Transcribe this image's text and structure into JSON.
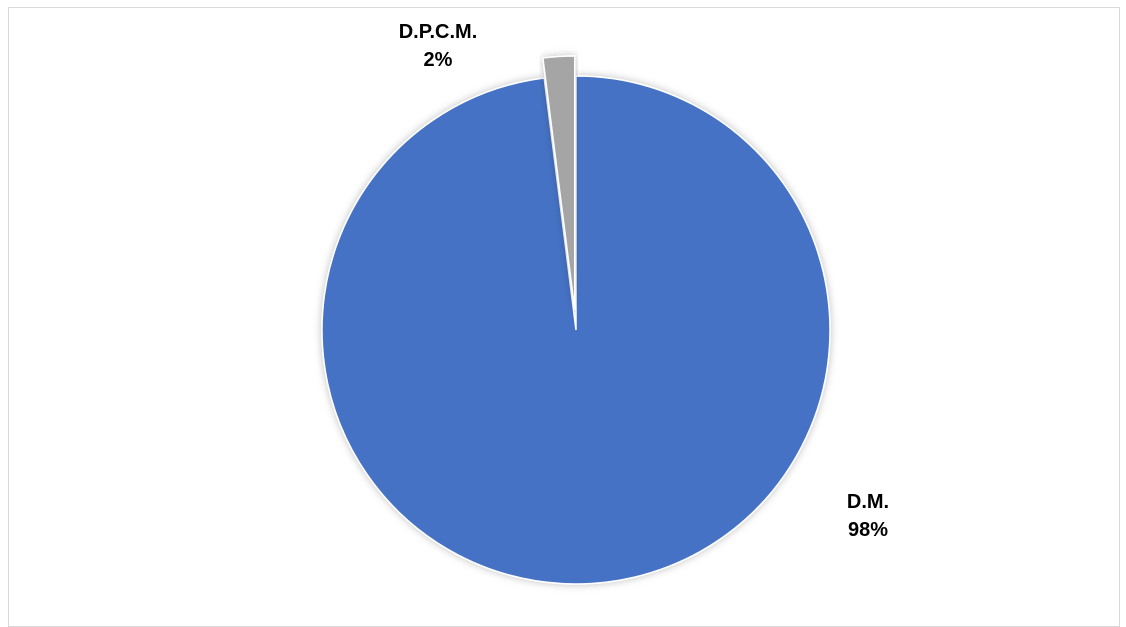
{
  "chart_data": {
    "type": "pie",
    "categories": [
      "D.M.",
      "D.P.C.M."
    ],
    "values": [
      98,
      2
    ],
    "value_unit": "%",
    "colors": [
      "#4472c4",
      "#a5a5a5"
    ],
    "exploded": [
      "D.P.C.M."
    ],
    "data_labels": [
      {
        "category": "D.M.",
        "text": "98%"
      },
      {
        "category": "D.P.C.M.",
        "text": "2%"
      }
    ],
    "title": "",
    "legend": "none",
    "start_angle": "12 o'clock, clockwise"
  }
}
